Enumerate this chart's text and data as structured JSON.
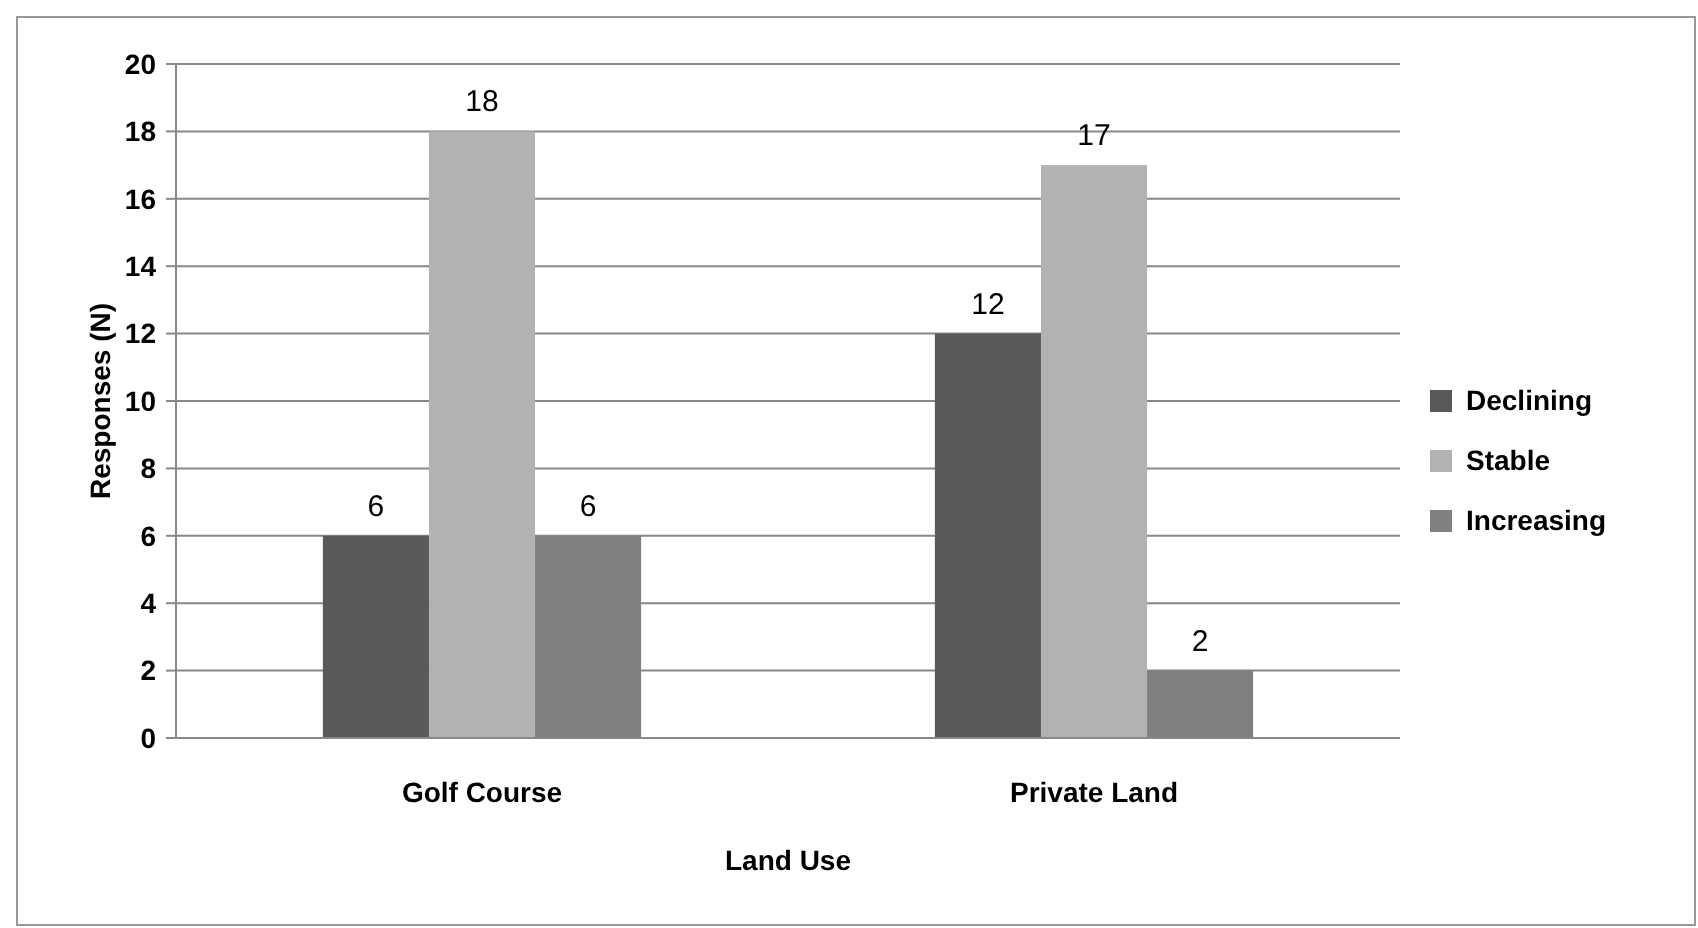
{
  "chart_data": {
    "type": "bar",
    "xlabel": "Land Use",
    "ylabel": "Responses (N)",
    "categories": [
      "Golf Course",
      "Private Land"
    ],
    "series": [
      {
        "name": "Declining",
        "color": "#595959",
        "values": [
          6,
          12
        ]
      },
      {
        "name": "Stable",
        "color": "#b2b2b2",
        "values": [
          18,
          17
        ]
      },
      {
        "name": "Increasing",
        "color": "#808080",
        "values": [
          6,
          2
        ]
      }
    ],
    "ylim": [
      0,
      20
    ],
    "yticks": [
      0,
      2,
      4,
      6,
      8,
      10,
      12,
      14,
      16,
      18,
      20
    ],
    "grid": "y",
    "legend": "right",
    "data_labels": true
  }
}
